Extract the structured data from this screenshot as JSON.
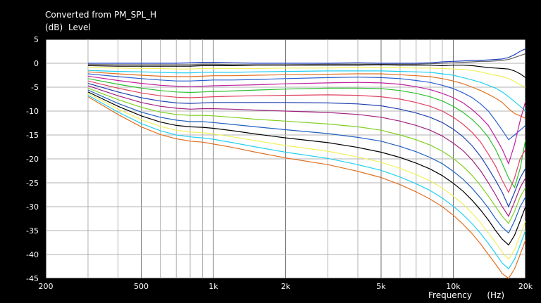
{
  "chart_data": {
    "type": "line",
    "title": "Converted from PM_SPL_H",
    "ylabel_unit": "(dB)",
    "ylabel": "Level",
    "xlabel": "Frequency",
    "xlabel_unit": "(Hz)",
    "xscale": "log",
    "xlim": [
      200,
      20000
    ],
    "ylim": [
      -45,
      5
    ],
    "grid": true,
    "background_color": "#000000",
    "plot_background_color": "#ffffff",
    "x_tick_labels": [
      "200",
      "500",
      "1k",
      "2k",
      "5k",
      "10k",
      "20k"
    ],
    "x_tick_values": [
      200,
      500,
      1000,
      2000,
      5000,
      10000,
      20000
    ],
    "y_tick_labels": [
      "5",
      "0",
      "-5",
      "-10",
      "-15",
      "-20",
      "-25",
      "-30",
      "-35",
      "-40",
      "-45"
    ],
    "y_tick_values": [
      5,
      0,
      -5,
      -10,
      -15,
      -20,
      -25,
      -30,
      -35,
      -40,
      -45
    ],
    "x": [
      300,
      400,
      500,
      600,
      700,
      800,
      900,
      1000,
      1200,
      1500,
      2000,
      3000,
      4000,
      5000,
      6000,
      7000,
      8000,
      9000,
      10000,
      11000,
      12000,
      13000,
      14000,
      15000,
      16000,
      17000,
      18000,
      19000,
      20000
    ],
    "series": [
      {
        "color": "#1f3fbf",
        "values": [
          0.0,
          0.0,
          0.0,
          0.0,
          0.0,
          0.1,
          0.2,
          0.2,
          0.1,
          0.0,
          0.0,
          0.0,
          0.1,
          0.0,
          0.0,
          0.0,
          0.1,
          0.3,
          0.4,
          0.5,
          0.6,
          0.6,
          0.7,
          0.8,
          0.9,
          1.2,
          1.8,
          2.5,
          3.0
        ]
      },
      {
        "color": "#606060",
        "values": [
          -0.2,
          -0.3,
          -0.3,
          -0.3,
          -0.3,
          -0.3,
          -0.2,
          -0.2,
          -0.3,
          -0.3,
          -0.3,
          -0.2,
          -0.2,
          -0.2,
          -0.2,
          -0.2,
          -0.1,
          0.0,
          0.1,
          0.2,
          0.3,
          0.4,
          0.4,
          0.5,
          0.6,
          0.8,
          1.2,
          1.6,
          2.0
        ]
      },
      {
        "color": "#000000",
        "values": [
          -0.5,
          -0.6,
          -0.6,
          -0.6,
          -0.6,
          -0.6,
          -0.5,
          -0.5,
          -0.5,
          -0.4,
          -0.4,
          -0.4,
          -0.4,
          -0.3,
          -0.4,
          -0.4,
          -0.4,
          -0.5,
          -0.4,
          -0.4,
          -0.5,
          -0.7,
          -0.9,
          -1.0,
          -1.1,
          -1.2,
          -1.6,
          -2.2,
          -3.0
        ]
      },
      {
        "color": "#f0f060",
        "values": [
          -0.9,
          -1.0,
          -1.1,
          -1.1,
          -1.2,
          -1.2,
          -1.1,
          -1.1,
          -1.1,
          -1.1,
          -1.0,
          -1.0,
          -0.9,
          -0.9,
          -0.9,
          -1.0,
          -1.0,
          -1.1,
          -1.2,
          -1.3,
          -1.5,
          -1.8,
          -2.2,
          -2.5,
          -2.8,
          -3.2,
          -3.8,
          -4.5,
          -5.0
        ]
      },
      {
        "color": "#20d0f0",
        "values": [
          -1.5,
          -1.7,
          -1.8,
          -1.9,
          -2.0,
          -2.0,
          -1.9,
          -1.9,
          -1.9,
          -1.8,
          -1.7,
          -1.6,
          -1.6,
          -1.6,
          -1.7,
          -1.8,
          -1.9,
          -2.2,
          -2.5,
          -3.0,
          -3.5,
          -4.0,
          -4.6,
          -5.2,
          -6.0,
          -7.0,
          -8.0,
          -9.0,
          -10.0
        ]
      },
      {
        "color": "#e07020",
        "values": [
          -1.8,
          -2.2,
          -2.5,
          -2.7,
          -2.8,
          -2.8,
          -2.7,
          -2.6,
          -2.6,
          -2.5,
          -2.4,
          -2.3,
          -2.2,
          -2.2,
          -2.4,
          -2.6,
          -2.8,
          -3.2,
          -3.7,
          -4.3,
          -5.0,
          -5.7,
          -6.5,
          -7.3,
          -8.2,
          -9.5,
          -10.5,
          -11.0,
          -11.5
        ]
      },
      {
        "color": "#2a5fd0",
        "values": [
          -2.2,
          -2.8,
          -3.2,
          -3.5,
          -3.7,
          -3.7,
          -3.6,
          -3.5,
          -3.5,
          -3.4,
          -3.2,
          -3.0,
          -2.9,
          -3.0,
          -3.2,
          -3.6,
          -4.0,
          -4.6,
          -5.3,
          -6.2,
          -7.2,
          -8.5,
          -10.0,
          -12.0,
          -14.0,
          -16.0,
          -15.0,
          -14.0,
          -13.0
        ]
      },
      {
        "color": "#c020a0",
        "values": [
          -2.7,
          -3.6,
          -4.2,
          -4.6,
          -4.8,
          -4.9,
          -4.8,
          -4.7,
          -4.6,
          -4.5,
          -4.3,
          -4.1,
          -4.0,
          -4.1,
          -4.4,
          -4.9,
          -5.5,
          -6.3,
          -7.2,
          -8.3,
          -9.7,
          -11.3,
          -13.0,
          -15.5,
          -18.0,
          -21.0,
          -17.0,
          -12.0,
          -8.0
        ]
      },
      {
        "color": "#30c030",
        "values": [
          -3.2,
          -4.4,
          -5.2,
          -5.7,
          -6.0,
          -6.1,
          -6.0,
          -5.9,
          -5.8,
          -5.6,
          -5.4,
          -5.2,
          -5.2,
          -5.3,
          -5.7,
          -6.3,
          -7.0,
          -7.9,
          -9.0,
          -10.3,
          -11.8,
          -13.5,
          -15.5,
          -18.0,
          -21.0,
          -24.0,
          -26.0,
          -22.0,
          -16.0
        ]
      },
      {
        "color": "#e04060",
        "values": [
          -3.7,
          -5.2,
          -6.2,
          -6.8,
          -7.1,
          -7.2,
          -7.1,
          -7.0,
          -6.9,
          -6.8,
          -6.7,
          -6.6,
          -6.7,
          -7.0,
          -7.5,
          -8.2,
          -9.0,
          -10.0,
          -11.3,
          -12.8,
          -14.5,
          -16.5,
          -19.0,
          -21.5,
          -24.5,
          -27.0,
          -24.0,
          -20.0,
          -18.0
        ]
      },
      {
        "color": "#2040b0",
        "values": [
          -4.2,
          -6.0,
          -7.2,
          -7.9,
          -8.3,
          -8.4,
          -8.3,
          -8.2,
          -8.2,
          -8.2,
          -8.2,
          -8.3,
          -8.5,
          -8.9,
          -9.6,
          -10.4,
          -11.3,
          -12.4,
          -13.8,
          -15.4,
          -17.3,
          -19.5,
          -22.0,
          -24.5,
          -27.0,
          -30.0,
          -27.0,
          -24.0,
          -22.0
        ]
      },
      {
        "color": "#a02080",
        "values": [
          -4.7,
          -6.8,
          -8.2,
          -9.0,
          -9.4,
          -9.6,
          -9.5,
          -9.5,
          -9.6,
          -9.8,
          -10.0,
          -10.3,
          -10.7,
          -11.3,
          -12.1,
          -13.0,
          -14.0,
          -15.2,
          -16.7,
          -18.3,
          -20.3,
          -22.5,
          -25.0,
          -27.5,
          -30.0,
          -32.0,
          -29.0,
          -26.0,
          -24.0
        ]
      },
      {
        "color": "#80d020",
        "values": [
          -5.2,
          -7.6,
          -9.2,
          -10.2,
          -10.7,
          -10.9,
          -10.9,
          -11.0,
          -11.3,
          -11.7,
          -12.1,
          -12.7,
          -13.3,
          -14.0,
          -15.0,
          -16.0,
          -17.1,
          -18.4,
          -19.9,
          -21.6,
          -23.5,
          -25.6,
          -27.8,
          -30.0,
          -32.0,
          -33.5,
          -31.0,
          -28.0,
          -26.0
        ]
      },
      {
        "color": "#2060c0",
        "values": [
          -5.6,
          -8.4,
          -10.2,
          -11.3,
          -11.9,
          -12.2,
          -12.2,
          -12.4,
          -12.8,
          -13.3,
          -13.9,
          -14.7,
          -15.5,
          -16.3,
          -17.4,
          -18.5,
          -19.7,
          -21.0,
          -22.6,
          -24.3,
          -26.2,
          -28.2,
          -30.3,
          -32.5,
          -34.3,
          -35.5,
          -33.0,
          -30.0,
          -28.0
        ]
      },
      {
        "color": "#000000",
        "values": [
          -6.0,
          -9.0,
          -11.0,
          -12.3,
          -13.0,
          -13.3,
          -13.4,
          -13.6,
          -14.1,
          -14.8,
          -15.6,
          -16.6,
          -17.6,
          -18.6,
          -19.7,
          -20.9,
          -22.1,
          -23.5,
          -25.1,
          -26.8,
          -28.7,
          -30.7,
          -32.8,
          -35.0,
          -36.8,
          -38.0,
          -36.0,
          -33.0,
          -30.0
        ]
      },
      {
        "color": "#f0f060",
        "values": [
          -6.3,
          -9.6,
          -11.8,
          -13.2,
          -14.0,
          -14.4,
          -14.5,
          -14.8,
          -15.4,
          -16.2,
          -17.2,
          -18.4,
          -19.6,
          -20.7,
          -22.0,
          -23.3,
          -24.6,
          -26.1,
          -27.8,
          -29.5,
          -31.4,
          -33.4,
          -35.5,
          -37.5,
          -39.5,
          -41.0,
          -39.0,
          -36.0,
          -33.0
        ]
      },
      {
        "color": "#20d0f0",
        "values": [
          -6.7,
          -10.2,
          -12.6,
          -14.1,
          -15.0,
          -15.4,
          -15.6,
          -15.9,
          -16.6,
          -17.5,
          -18.6,
          -19.9,
          -21.2,
          -22.4,
          -23.8,
          -25.2,
          -26.6,
          -28.2,
          -29.9,
          -31.7,
          -33.6,
          -35.6,
          -37.7,
          -39.8,
          -41.8,
          -43.0,
          -41.0,
          -38.0,
          -35.0
        ]
      },
      {
        "color": "#e07020",
        "values": [
          -7.0,
          -10.7,
          -13.3,
          -14.9,
          -15.8,
          -16.3,
          -16.5,
          -16.9,
          -17.6,
          -18.6,
          -19.8,
          -21.2,
          -22.6,
          -23.9,
          -25.4,
          -26.9,
          -28.4,
          -30.0,
          -31.8,
          -33.7,
          -35.7,
          -37.8,
          -40.0,
          -42.0,
          -44.0,
          -45.0,
          -43.0,
          -40.0,
          -37.0
        ]
      }
    ]
  }
}
